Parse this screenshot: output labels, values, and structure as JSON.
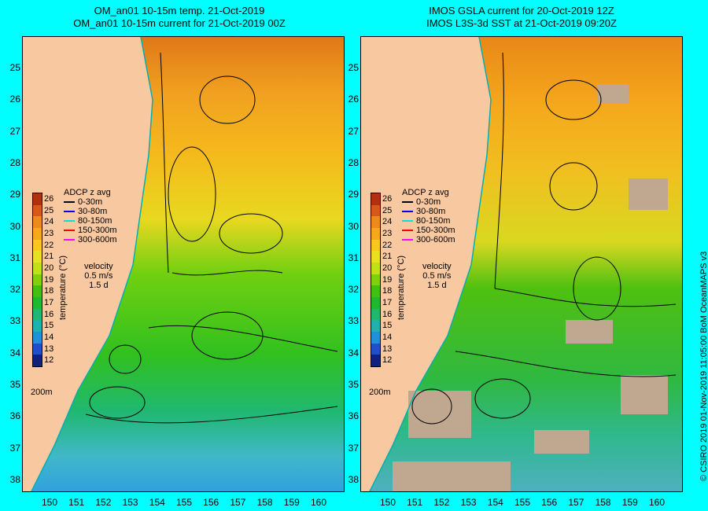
{
  "left_panel": {
    "title_line1": "OM_an01 10-15m temp. 21-Oct-2019",
    "title_line2": "OM_an01 10-15m current for 21-Oct-2019 00Z"
  },
  "right_panel": {
    "title_line1": "IMOS GSLA current for 20-Oct-2019 12Z",
    "title_line2": "IMOS L3S-3d SST at 21-Oct-2019 09:20Z"
  },
  "latitude_ticks": [
    "25",
    "26",
    "27",
    "28",
    "29",
    "30",
    "31",
    "32",
    "33",
    "34",
    "35",
    "36",
    "37",
    "38"
  ],
  "longitude_ticks": [
    "150",
    "151",
    "152",
    "153",
    "154",
    "155",
    "156",
    "157",
    "158",
    "159",
    "160"
  ],
  "colorbar": {
    "label": "temperature (°C)",
    "ticks": [
      "26",
      "25",
      "24",
      "23",
      "22",
      "21",
      "20",
      "19",
      "18",
      "17",
      "16",
      "15",
      "14",
      "13",
      "12"
    ],
    "colors": [
      "#b03010",
      "#d8581c",
      "#ee8a1c",
      "#f5a81c",
      "#f8c81c",
      "#e8e020",
      "#c0e018",
      "#80d010",
      "#40c010",
      "#20b830",
      "#20b870",
      "#20b0b0",
      "#2090d8",
      "#2050c8",
      "#102080"
    ]
  },
  "legend": {
    "title": "ADCP z avg",
    "items": [
      {
        "label": "0-30m",
        "color": "#000000"
      },
      {
        "label": "30-80m",
        "color": "#0000ff"
      },
      {
        "label": "80-150m",
        "color": "#00e0e0"
      },
      {
        "label": "150-300m",
        "color": "#ff0000"
      },
      {
        "label": "300-600m",
        "color": "#ff00ff"
      }
    ],
    "velocity_label": "velocity",
    "velocity_scale": "0.5 m/s",
    "duration": "1.5 d"
  },
  "isobath_label": "200m",
  "copyright": "© CSIRO 2019   01-Nov-2019 11:05:00 BoM OceanMAPS v3"
}
